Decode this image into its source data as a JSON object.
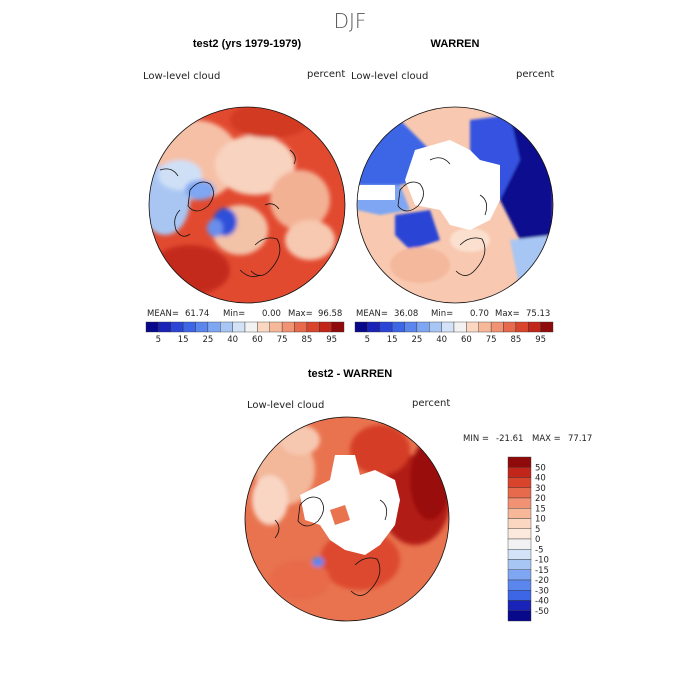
{
  "page": {
    "season": "DJF"
  },
  "chart_data": [
    {
      "type": "heatmap",
      "projection": "north-polar-stereographic",
      "title": "test2 (yrs 1979-1979)",
      "field": "Low-level cloud",
      "units": "percent",
      "stats": {
        "mean_label": "MEAN=",
        "mean": "61.74",
        "min_label": "Min=",
        "min": "0.00",
        "max_label": "Max=",
        "max": "96.58"
      },
      "colorbar": {
        "orientation": "horizontal",
        "levels": [
          0,
          5,
          10,
          15,
          20,
          25,
          30,
          40,
          50,
          60,
          65,
          75,
          80,
          85,
          90,
          95,
          100
        ],
        "tick_labels": [
          "5",
          "15",
          "25",
          "40",
          "60",
          "75",
          "85",
          "95"
        ],
        "colors": [
          "#08088a",
          "#1a23b8",
          "#2b45d6",
          "#3c66e6",
          "#5a86ee",
          "#7ea6f2",
          "#a7c6f4",
          "#d3e2f6",
          "#f2f2f2",
          "#fbd7c2",
          "#f7b89a",
          "#f09273",
          "#e76a4c",
          "#d9452c",
          "#c2261a",
          "#8f0b0b"
        ]
      }
    },
    {
      "type": "heatmap",
      "projection": "north-polar-stereographic",
      "title": "WARREN",
      "field": "Low-level cloud",
      "units": "percent",
      "stats": {
        "mean_label": "MEAN=",
        "mean": "36.08",
        "min_label": "Min=",
        "min": "0.70",
        "max_label": "Max=",
        "max": "75.13"
      },
      "colorbar": {
        "orientation": "horizontal",
        "levels": [
          0,
          5,
          10,
          15,
          20,
          25,
          30,
          40,
          50,
          60,
          65,
          75,
          80,
          85,
          90,
          95,
          100
        ],
        "tick_labels": [
          "5",
          "15",
          "25",
          "40",
          "60",
          "75",
          "85",
          "95"
        ],
        "colors": [
          "#08088a",
          "#1a23b8",
          "#2b45d6",
          "#3c66e6",
          "#5a86ee",
          "#7ea6f2",
          "#a7c6f4",
          "#d3e2f6",
          "#f2f2f2",
          "#fbd7c2",
          "#f7b89a",
          "#f09273",
          "#e76a4c",
          "#d9452c",
          "#c2261a",
          "#8f0b0b"
        ]
      }
    },
    {
      "type": "heatmap",
      "projection": "north-polar-stereographic",
      "title": "test2 - WARREN",
      "field": "Low-level cloud",
      "units": "percent",
      "stats": {
        "min_label": "MIN =",
        "min": "-21.61",
        "max_label": "MAX =",
        "max": "77.17"
      },
      "colorbar": {
        "orientation": "vertical",
        "tick_labels": [
          "50",
          "40",
          "30",
          "20",
          "15",
          "10",
          "5",
          "0",
          "-5",
          "-10",
          "-15",
          "-20",
          "-30",
          "-40",
          "-50"
        ],
        "colors": [
          "#8f0b0b",
          "#c2261a",
          "#d9452c",
          "#e76a4c",
          "#f09273",
          "#f7b89a",
          "#fbd7c2",
          "#fbe9dd",
          "#f2f2f2",
          "#d3e2f6",
          "#a7c6f4",
          "#7ea6f2",
          "#5a86ee",
          "#3c66e6",
          "#1a23b8",
          "#08088a"
        ]
      }
    }
  ]
}
